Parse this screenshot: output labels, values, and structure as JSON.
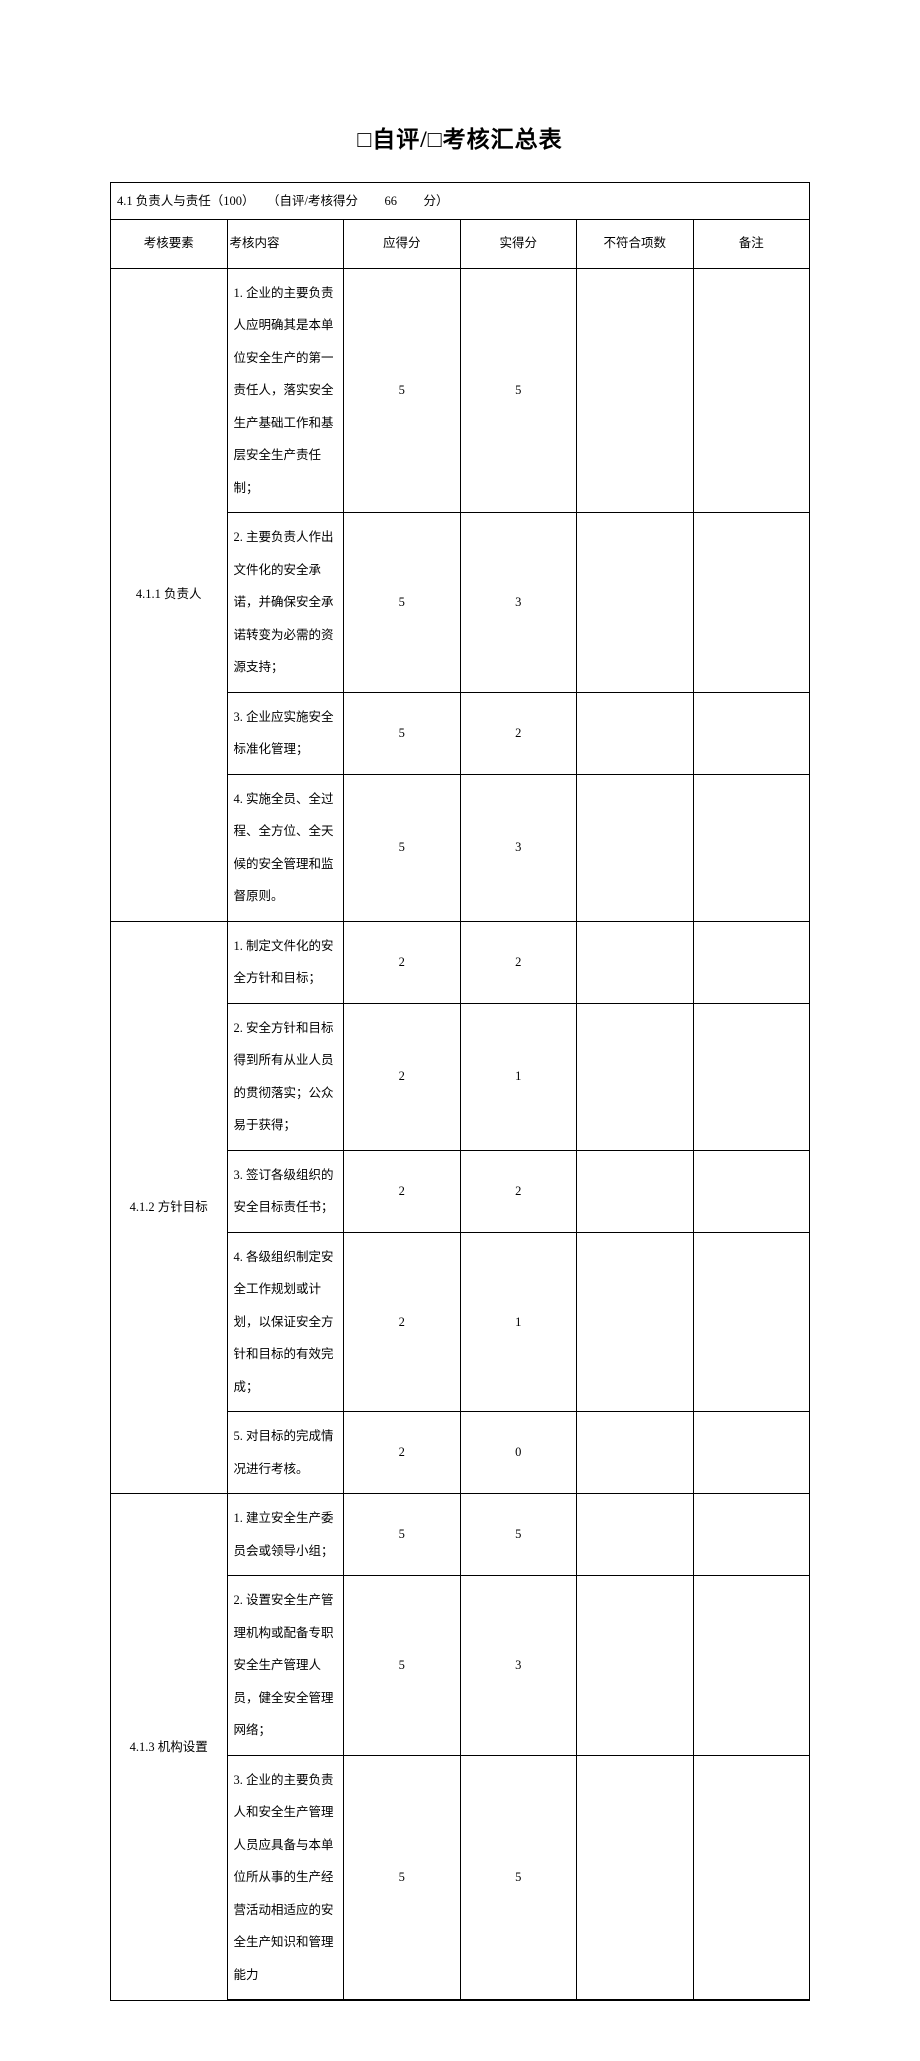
{
  "title": "□自评/□考核汇总表",
  "section": {
    "prefix": "4.1 负责人与责任（100）",
    "score_label_before": "（自评/考核得分",
    "score_value": "66",
    "score_label_after": "分）"
  },
  "headers": {
    "element": "考核要素",
    "content": "考核内容",
    "max": "应得分",
    "actual": "实得分",
    "nonconf": "不符合项数",
    "remark": "备注"
  },
  "groups": [
    {
      "element": "4.1.1 负责人",
      "rows": [
        {
          "content": "1. 企业的主要负责人应明确其是本单位安全生产的第一责任人，落实安全生产基础工作和基层安全生产责任制；",
          "max": "5",
          "actual": "5",
          "nonconf": "",
          "remark": ""
        },
        {
          "content": "2. 主要负责人作出文件化的安全承诺，并确保安全承诺转变为必需的资源支持；",
          "max": "5",
          "actual": "3",
          "nonconf": "",
          "remark": ""
        },
        {
          "content": "3. 企业应实施安全标准化管理；",
          "max": "5",
          "actual": "2",
          "nonconf": "",
          "remark": ""
        },
        {
          "content": "4. 实施全员、全过程、全方位、全天候的安全管理和监督原则。",
          "max": "5",
          "actual": "3",
          "nonconf": "",
          "remark": ""
        }
      ]
    },
    {
      "element": "4.1.2 方针目标",
      "rows": [
        {
          "content": "1. 制定文件化的安全方针和目标；",
          "max": "2",
          "actual": "2",
          "nonconf": "",
          "remark": ""
        },
        {
          "content": "2. 安全方针和目标得到所有从业人员的贯彻落实；公众易于获得；",
          "max": "2",
          "actual": "1",
          "nonconf": "",
          "remark": ""
        },
        {
          "content": "3. 签订各级组织的安全目标责任书；",
          "max": "2",
          "actual": "2",
          "nonconf": "",
          "remark": ""
        },
        {
          "content": "4. 各级组织制定安全工作规划或计划，以保证安全方针和目标的有效完成；",
          "max": "2",
          "actual": "1",
          "nonconf": "",
          "remark": ""
        },
        {
          "content": "5. 对目标的完成情况进行考核。",
          "max": "2",
          "actual": "0",
          "nonconf": "",
          "remark": ""
        }
      ]
    },
    {
      "element": "4.1.3 机构设置",
      "rows": [
        {
          "content": "1. 建立安全生产委员会或领导小组；",
          "max": "5",
          "actual": "5",
          "nonconf": "",
          "remark": ""
        },
        {
          "content": "2. 设置安全生产管理机构或配备专职安全生产管理人员，健全安全管理网络；",
          "max": "5",
          "actual": "3",
          "nonconf": "",
          "remark": ""
        },
        {
          "content": "3. 企业的主要负责人和安全生产管理人员应具备与本单位所从事的生产经营活动相适应的安全生产知识和管理能力",
          "max": "5",
          "actual": "5",
          "nonconf": "",
          "remark": ""
        }
      ]
    }
  ]
}
